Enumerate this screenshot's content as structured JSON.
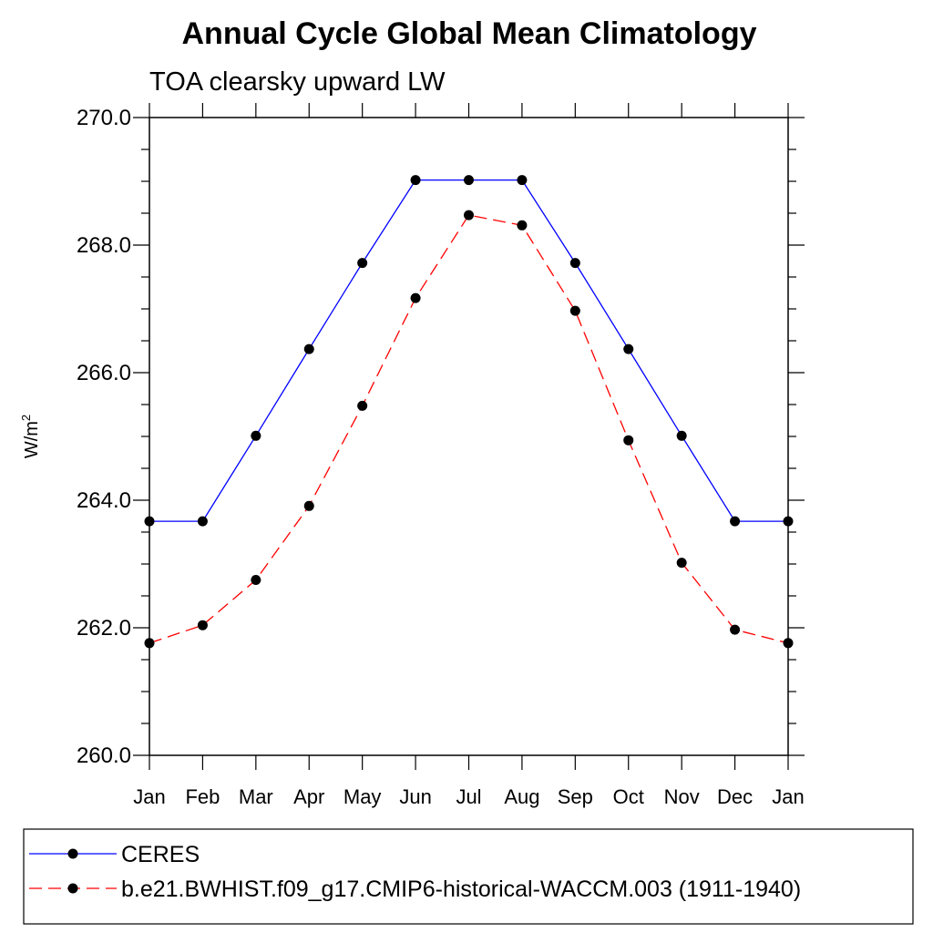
{
  "chart_data": {
    "type": "line",
    "title": "Annual Cycle Global Mean Climatology",
    "subtitle": "TOA clearsky upward LW",
    "ylabel_base": "W/m",
    "ylabel_sup": "2",
    "xlabel": "",
    "categories": [
      "Jan",
      "Feb",
      "Mar",
      "Apr",
      "May",
      "Jun",
      "Jul",
      "Aug",
      "Sep",
      "Oct",
      "Nov",
      "Dec",
      "Jan"
    ],
    "ylim": [
      260.0,
      270.0
    ],
    "yticks": [
      "270.0",
      "268.0",
      "266.0",
      "264.0",
      "262.0",
      "260.0"
    ],
    "ytick_values": [
      270,
      268,
      266,
      264,
      262,
      260
    ],
    "grid": false,
    "legend_position": "bottom",
    "series": [
      {
        "name": "CERES",
        "color": "#0000ff",
        "dash": "solid",
        "marker": "filled-circle",
        "values": [
          263.67,
          263.67,
          265.01,
          266.37,
          267.72,
          269.02,
          269.02,
          269.02,
          267.72,
          266.37,
          265.01,
          263.67,
          263.67
        ]
      },
      {
        "name": "b.e21.BWHIST.f09_g17.CMIP6-historical-WACCM.003 (1911-1940)",
        "color": "#ff0000",
        "dash": "dashed",
        "marker": "filled-circle",
        "values": [
          261.76,
          262.04,
          262.75,
          263.91,
          265.48,
          267.17,
          268.47,
          268.31,
          266.97,
          264.94,
          263.02,
          261.97,
          261.76
        ]
      }
    ]
  }
}
